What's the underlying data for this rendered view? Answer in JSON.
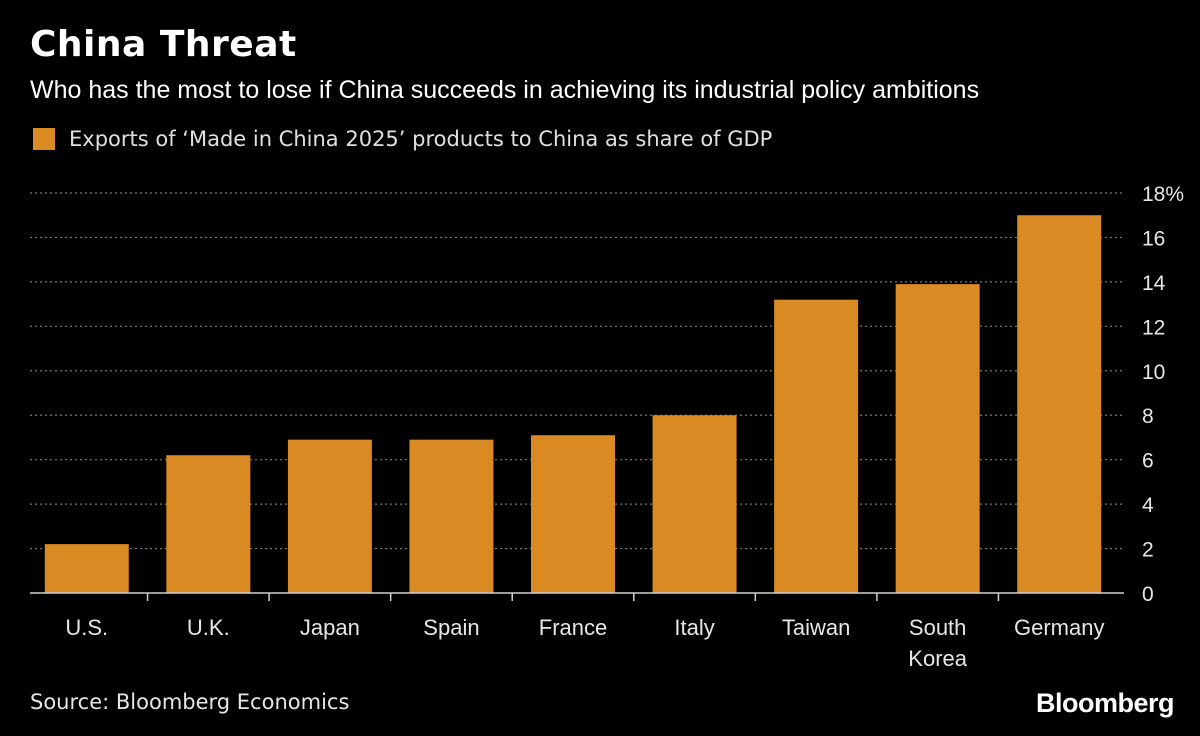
{
  "title": "China Threat",
  "subtitle": "Who has the most to lose if China succeeds in achieving its industrial policy ambitions",
  "source": "Source: Bloomberg Economics",
  "brand": "Bloomberg",
  "colors": {
    "background": "#000000",
    "bar": "#da8a22",
    "grid": "#7a7a7a",
    "text": "#ffffff"
  },
  "chart_data": {
    "type": "bar",
    "title": "China Threat",
    "xlabel": "",
    "ylabel": "",
    "categories": [
      "U.S.",
      "U.K.",
      "Japan",
      "Spain",
      "France",
      "Italy",
      "Taiwan",
      "South Korea",
      "Germany"
    ],
    "category_labels": [
      [
        "U.S."
      ],
      [
        "U.K."
      ],
      [
        "Japan"
      ],
      [
        "Spain"
      ],
      [
        "France"
      ],
      [
        "Italy"
      ],
      [
        "Taiwan"
      ],
      [
        "South",
        "Korea"
      ],
      [
        "Germany"
      ]
    ],
    "series": [
      {
        "name": "Exports of ‘Made in China 2025’ products to China as share of GDP",
        "values": [
          2.2,
          6.2,
          6.9,
          6.9,
          7.1,
          8.0,
          13.2,
          13.9,
          17.0
        ]
      }
    ],
    "ylim": [
      0,
      18
    ],
    "yticks": [
      0,
      2,
      4,
      6,
      8,
      10,
      12,
      14,
      16,
      18
    ],
    "ytick_labels": [
      "0",
      "2",
      "4",
      "6",
      "8",
      "10",
      "12",
      "14",
      "16",
      "18%"
    ],
    "grid": true,
    "legend": "top-left",
    "y_axis_side": "right"
  }
}
